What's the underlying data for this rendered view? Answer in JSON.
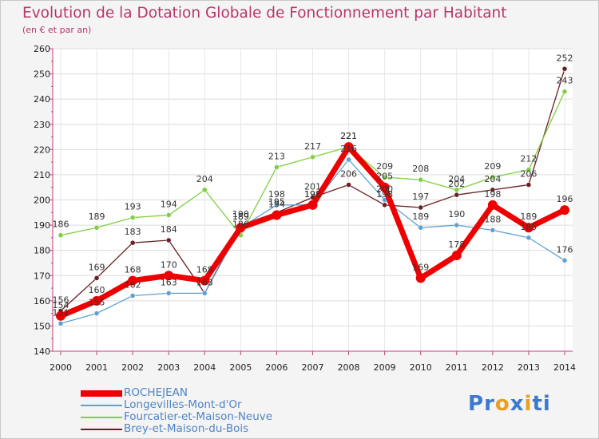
{
  "chart_data": {
    "type": "line",
    "title": "Evolution de la Dotation Globale de Fonctionnement par Habitant",
    "subtitle": "(en € et par an)",
    "xlabel": "",
    "ylabel": "",
    "ylim": [
      140,
      260
    ],
    "yticks": [
      140,
      150,
      160,
      170,
      180,
      190,
      200,
      210,
      220,
      230,
      240,
      250,
      260
    ],
    "categories": [
      "2000",
      "2001",
      "2002",
      "2003",
      "2004",
      "2005",
      "2006",
      "2007",
      "2008",
      "2009",
      "2010",
      "2011",
      "2012",
      "2013",
      "2014"
    ],
    "series": [
      {
        "name": "Brey-et-Maison-du-Bois",
        "color": "#6b1f24",
        "values": [
          156,
          169,
          183,
          184,
          163,
          190,
          195,
          201,
          206,
          198,
          197,
          202,
          204,
          206,
          252
        ],
        "labels": [
          156,
          169,
          183,
          184,
          163,
          190,
          195,
          201,
          206,
          198,
          197,
          202,
          204,
          206,
          252
        ]
      },
      {
        "name": "Fourcatier-et-Maison-Neuve",
        "color": "#7fcf3f",
        "values": [
          186,
          189,
          193,
          194,
          204,
          186,
          213,
          217,
          221,
          209,
          208,
          204,
          209,
          212,
          243
        ],
        "labels": [
          186,
          189,
          193,
          194,
          204,
          186,
          213,
          217,
          221,
          209,
          208,
          204,
          209,
          212,
          243
        ]
      },
      {
        "name": "Longevilles-Mont-d'Or",
        "color": "#5fa0d4",
        "values": [
          151,
          155,
          162,
          163,
          163,
          189,
          198,
          198,
          216,
          200,
          189,
          190,
          188,
          185,
          176
        ],
        "labels": [
          151,
          155,
          162,
          163,
          163,
          189,
          198,
          198,
          216,
          200,
          189,
          190,
          188,
          185,
          176
        ]
      },
      {
        "name": "ROCHEJEAN",
        "color": "#ee0000",
        "values": [
          154,
          160,
          168,
          170,
          168,
          189,
          194,
          198,
          221,
          205,
          169,
          178,
          198,
          189,
          196
        ],
        "labels": [
          154,
          160,
          168,
          170,
          168,
          189,
          194,
          198,
          221,
          205,
          169,
          178,
          198,
          189,
          196
        ]
      }
    ],
    "legend": [
      {
        "name": "ROCHEJEAN",
        "color": "#ee0000"
      },
      {
        "name": "Longevilles-Mont-d'Or",
        "color": "#5fa0d4"
      },
      {
        "name": "Fourcatier-et-Maison-Neuve",
        "color": "#7fcf3f"
      },
      {
        "name": "Brey-et-Maison-du-Bois",
        "color": "#6b1f24"
      }
    ],
    "legend_position": "bottom-left"
  },
  "logo": {
    "text": "Proxiti",
    "colors": [
      "#3a7ad0",
      "#3a7ad0",
      "#e8a020",
      "#3a7ad0",
      "#e8a020",
      "#3a7ad0",
      "#3a7ad0"
    ]
  }
}
